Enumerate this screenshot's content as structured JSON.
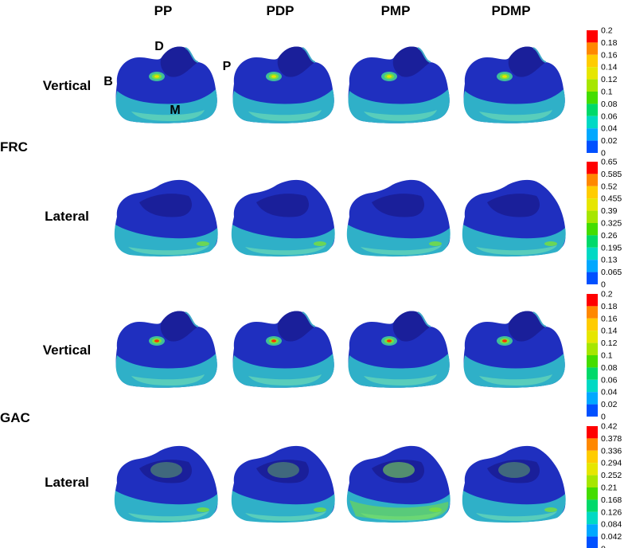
{
  "columns": [
    "PP",
    "PDP",
    "PMP",
    "PDMP"
  ],
  "groups": [
    {
      "label": "FRC",
      "rows": [
        {
          "label": "Vertical",
          "scale": 0
        },
        {
          "label": "Lateral",
          "scale": 1
        }
      ]
    },
    {
      "label": "GAC",
      "rows": [
        {
          "label": "Vertical",
          "scale": 2
        },
        {
          "label": "Lateral",
          "scale": 3
        }
      ]
    }
  ],
  "orientation_labels": {
    "D": "D",
    "B": "B",
    "P": "P",
    "M": "M"
  },
  "color_scales": [
    {
      "ticks": [
        "0.2",
        "0.18",
        "0.16",
        "0.14",
        "0.12",
        "0.1",
        "0.08",
        "0.06",
        "0.04",
        "0.02",
        "0"
      ]
    },
    {
      "ticks": [
        "0.65",
        "0.585",
        "0.52",
        "0.455",
        "0.39",
        "0.325",
        "0.26",
        "0.195",
        "0.13",
        "0.065",
        "0"
      ]
    },
    {
      "ticks": [
        "0.2",
        "0.18",
        "0.16",
        "0.14",
        "0.12",
        "0.1",
        "0.08",
        "0.06",
        "0.04",
        "0.02",
        "0"
      ]
    },
    {
      "ticks": [
        "0.42",
        "0.378",
        "0.336",
        "0.294",
        "0.252",
        "0.21",
        "0.168",
        "0.126",
        "0.084",
        "0.042",
        "0"
      ]
    }
  ],
  "scale_colors": [
    "#ff0000",
    "#ff8800",
    "#ffcc00",
    "#e6e600",
    "#a6e600",
    "#44dd00",
    "#00d96a",
    "#00d9c4",
    "#00a8ff",
    "#0050ff",
    "#0000ee"
  ],
  "model_colors": {
    "base": "#1f2fbf",
    "dark": "#1a1f9a",
    "band": "#2fb0c8",
    "band_light": "#63d4b8",
    "hot_green": "#7be03a",
    "hot_yellow": "#e8e000",
    "hot_red": "#ff3000"
  }
}
